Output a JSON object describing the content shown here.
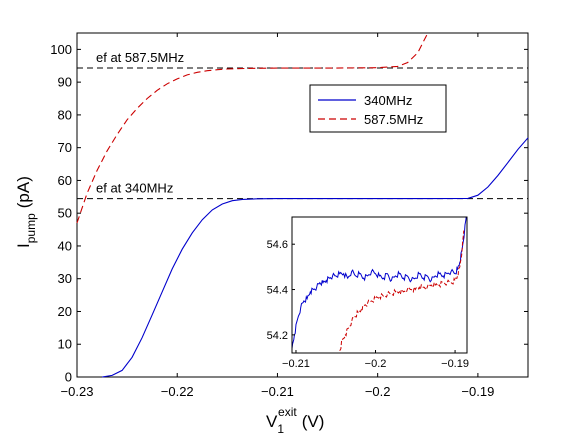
{
  "chart_data": {
    "type": "line",
    "xlabel": {
      "main": "V",
      "sub": "1",
      "sup": "exit",
      "unit": "(V)"
    },
    "ylabel": {
      "main": "I",
      "sub": "pump",
      "unit": "(pA)"
    },
    "xlim": [
      -0.23,
      -0.185
    ],
    "ylim": [
      0,
      105
    ],
    "xticks": [
      -0.23,
      -0.22,
      -0.21,
      -0.2,
      -0.19
    ],
    "xtick_labels": [
      "−0.23",
      "−0.22",
      "−0.21",
      "−0.2",
      "−0.19"
    ],
    "yticks": [
      0,
      10,
      20,
      30,
      40,
      50,
      60,
      70,
      80,
      90,
      100
    ],
    "ytick_labels": [
      "0",
      "10",
      "20",
      "30",
      "40",
      "50",
      "60",
      "70",
      "80",
      "90",
      "100"
    ],
    "grid": false,
    "legend_position": "upper-right",
    "series": [
      {
        "name": "340MHz",
        "color": "#0000cc",
        "dash": "solid",
        "x": [
          -0.2275,
          -0.2265,
          -0.2255,
          -0.2245,
          -0.2235,
          -0.2225,
          -0.2215,
          -0.2205,
          -0.2195,
          -0.2185,
          -0.2175,
          -0.2165,
          -0.2155,
          -0.2145,
          -0.2135,
          -0.212,
          -0.21,
          -0.205,
          -0.2,
          -0.195,
          -0.191,
          -0.19,
          -0.189,
          -0.188,
          -0.187,
          -0.186,
          -0.185
        ],
        "y": [
          0,
          0.5,
          2,
          6,
          12,
          19,
          26,
          33,
          39,
          44,
          48,
          51,
          52.8,
          53.8,
          54.2,
          54.4,
          54.45,
          54.45,
          54.45,
          54.45,
          54.5,
          55.5,
          58,
          61.5,
          65.5,
          69.5,
          73
        ]
      },
      {
        "name": "587.5MHz",
        "color": "#cc0000",
        "dash": "dashed",
        "x": [
          -0.23,
          -0.229,
          -0.228,
          -0.227,
          -0.226,
          -0.225,
          -0.224,
          -0.223,
          -0.222,
          -0.221,
          -0.22,
          -0.219,
          -0.218,
          -0.217,
          -0.216,
          -0.215,
          -0.213,
          -0.21,
          -0.205,
          -0.2,
          -0.198,
          -0.197,
          -0.196,
          -0.1955,
          -0.195
        ],
        "y": [
          47,
          56,
          63,
          69,
          74,
          78.5,
          82,
          85,
          87.5,
          89.5,
          91,
          92.2,
          93,
          93.5,
          93.8,
          94,
          94.2,
          94.3,
          94.3,
          94.4,
          94.8,
          96,
          99,
          102,
          105
        ]
      }
    ],
    "reference_lines": [
      {
        "y": 94.3,
        "label": "ef at 587.5MHz",
        "style": "dashed",
        "color": "#000000"
      },
      {
        "y": 54.45,
        "label": "ef at 340MHz",
        "style": "dashed",
        "color": "#000000"
      }
    ],
    "inset": {
      "xlim": [
        -0.2105,
        -0.1885
      ],
      "ylim": [
        54.12,
        54.72
      ],
      "xticks": [
        -0.21,
        -0.2,
        -0.19
      ],
      "xtick_labels": [
        "−0.21",
        "−0.2",
        "−0.19"
      ],
      "yticks": [
        54.2,
        54.4,
        54.6
      ],
      "ytick_labels": [
        "54.2",
        "54.4",
        "54.6"
      ],
      "series": [
        {
          "name": "340MHz",
          "color": "#0000cc",
          "dash": "solid",
          "x": [
            -0.2105,
            -0.2102,
            -0.2098,
            -0.2094,
            -0.209,
            -0.2086,
            -0.2082,
            -0.2078,
            -0.2074,
            -0.207,
            -0.2066,
            -0.2062,
            -0.2058,
            -0.2054,
            -0.205,
            -0.2045,
            -0.204,
            -0.2035,
            -0.203,
            -0.2025,
            -0.202,
            -0.2015,
            -0.201,
            -0.2005,
            -0.2,
            -0.1995,
            -0.199,
            -0.1985,
            -0.198,
            -0.1975,
            -0.197,
            -0.1965,
            -0.196,
            -0.1955,
            -0.195,
            -0.1945,
            -0.194,
            -0.1935,
            -0.193,
            -0.1925,
            -0.192,
            -0.1915,
            -0.191,
            -0.1905,
            -0.19,
            -0.1897,
            -0.1894,
            -0.1891,
            -0.1888,
            -0.1886
          ],
          "y": [
            54.14,
            54.2,
            54.27,
            54.32,
            54.35,
            54.36,
            54.39,
            54.4,
            54.41,
            54.43,
            54.43,
            54.44,
            54.45,
            54.46,
            54.46,
            54.47,
            54.47,
            54.45,
            54.48,
            54.46,
            54.47,
            54.45,
            54.46,
            54.48,
            54.47,
            54.46,
            54.45,
            54.47,
            54.44,
            54.46,
            54.47,
            54.45,
            54.46,
            54.44,
            54.45,
            54.47,
            54.45,
            54.46,
            54.44,
            54.46,
            54.47,
            54.46,
            54.47,
            54.48,
            54.47,
            54.49,
            54.52,
            54.58,
            54.66,
            54.72
          ]
        },
        {
          "name": "587.5MHz",
          "color": "#cc0000",
          "dash": "dashed",
          "x": [
            -0.2045,
            -0.2042,
            -0.2038,
            -0.2034,
            -0.203,
            -0.2026,
            -0.2022,
            -0.2018,
            -0.2014,
            -0.201,
            -0.2005,
            -0.2,
            -0.1995,
            -0.199,
            -0.1985,
            -0.198,
            -0.1975,
            -0.197,
            -0.1965,
            -0.196,
            -0.1955,
            -0.195,
            -0.1945,
            -0.194,
            -0.1935,
            -0.193,
            -0.1925,
            -0.192,
            -0.1915,
            -0.191,
            -0.1905,
            -0.19,
            -0.1897,
            -0.1894,
            -0.1891,
            -0.1889
          ],
          "y": [
            54.13,
            54.17,
            54.2,
            54.23,
            54.26,
            54.28,
            54.3,
            54.31,
            54.33,
            54.34,
            54.35,
            54.36,
            54.37,
            54.37,
            54.38,
            54.38,
            54.39,
            54.39,
            54.39,
            54.4,
            54.4,
            54.4,
            54.41,
            54.41,
            54.41,
            54.42,
            54.42,
            54.42,
            54.43,
            54.43,
            54.43,
            54.44,
            54.46,
            54.5,
            54.58,
            54.66
          ]
        }
      ]
    }
  }
}
